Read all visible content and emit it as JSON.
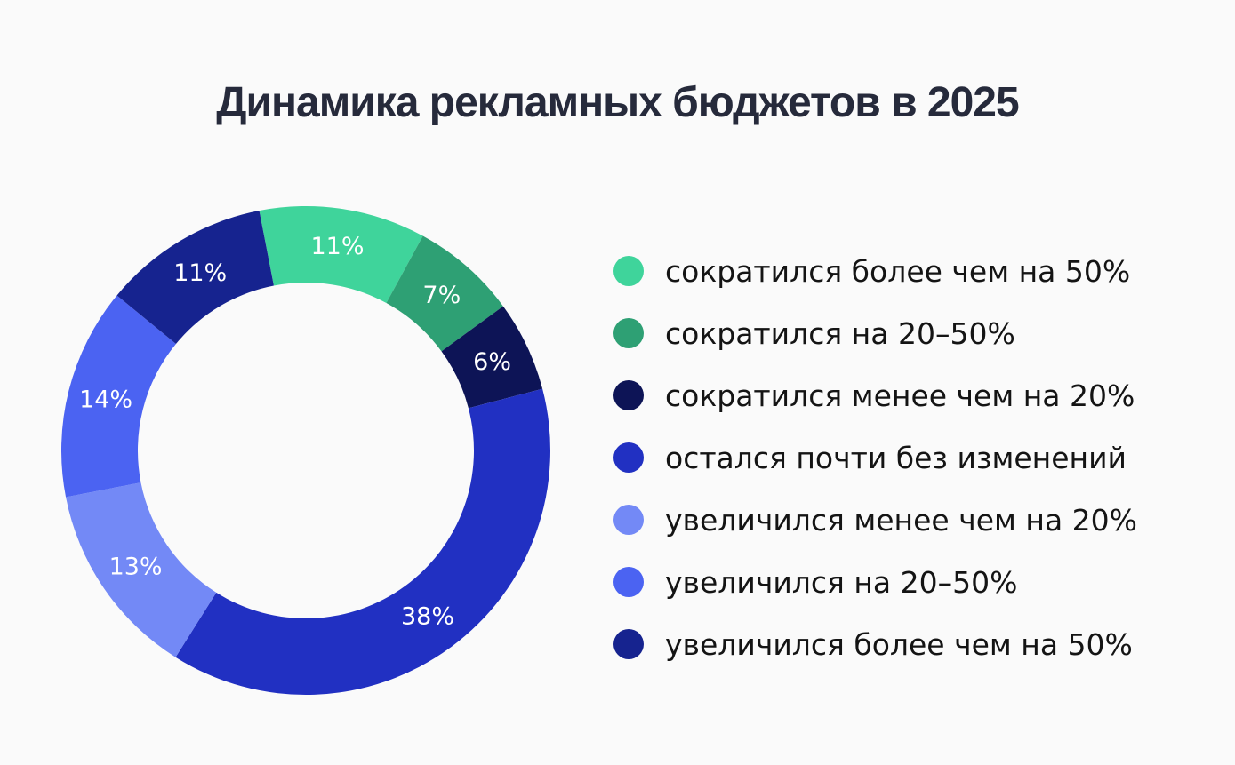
{
  "chart_data": {
    "type": "pie",
    "variant": "donut",
    "title": "Динамика рекламных бюджетов в 2025",
    "series": [
      {
        "label": "сократился более чем на 50%",
        "value": 11,
        "display": "11%",
        "color": "#3fd49b"
      },
      {
        "label": "сократился на 20–50%",
        "value": 7,
        "display": "7%",
        "color": "#2ea074"
      },
      {
        "label": "сократился менее чем на 20%",
        "value": 6,
        "display": "6%",
        "color": "#0d1456"
      },
      {
        "label": "остался почти без изменений",
        "value": 38,
        "display": "38%",
        "color": "#2130c2"
      },
      {
        "label": "увеличился менее чем на 20%",
        "value": 13,
        "display": "13%",
        "color": "#7389f6"
      },
      {
        "label": "увеличился на 20–50%",
        "value": 14,
        "display": "14%",
        "color": "#4b63f2"
      },
      {
        "label": "увеличился более чем на 50%",
        "value": 11,
        "display": "11%",
        "color": "#16238f"
      }
    ],
    "legend_position": "right"
  }
}
